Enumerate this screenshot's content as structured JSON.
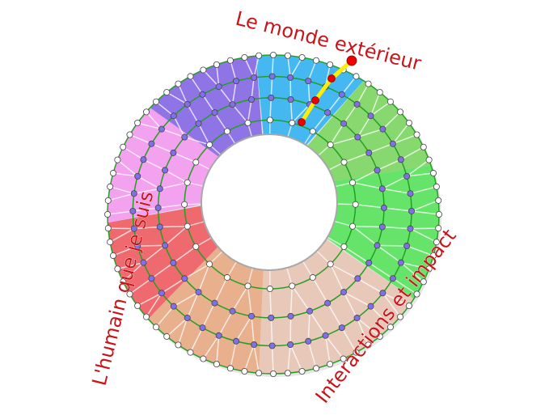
{
  "labels": {
    "top": "Le monde extérieur",
    "left": "L'humain que je suis",
    "bottom_right": "Interactions et impact"
  },
  "colors": {
    "label": "#c8141a",
    "ring_line": "#22a022",
    "path_highlight": "#ffee00",
    "path_node": "#ee0000",
    "inner_node": "#8070e8",
    "edge_node": "#ffffff",
    "sectors": [
      "#45b8f2",
      "#88d870",
      "#66e46a",
      "#e8c8b8",
      "#e8b08c",
      "#ee6a6e",
      "#f2a2ee",
      "#8f74e6"
    ]
  }
}
